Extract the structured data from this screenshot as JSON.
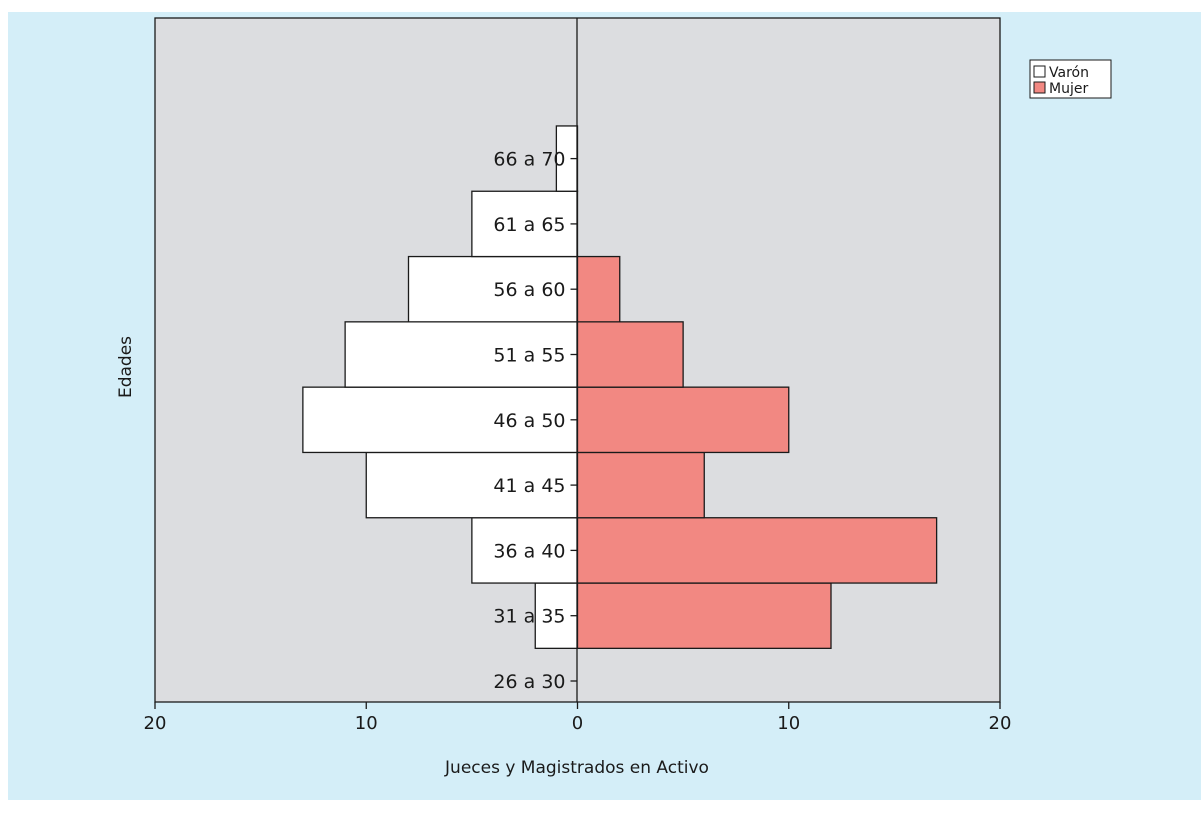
{
  "chart_data": {
    "type": "bar",
    "orientation": "horizontal",
    "layout": "population-pyramid",
    "xlabel": "Jueces y Magistrados en Activo",
    "ylabel": "Edades",
    "xlim": [
      -20,
      20
    ],
    "xticks": [
      -20,
      -10,
      0,
      10,
      20
    ],
    "xtick_labels": [
      "20",
      "10",
      "0",
      "10",
      "20"
    ],
    "categories": [
      "26 a 30",
      "31 a 35",
      "36 a 40",
      "41 a 45",
      "46 a 50",
      "51 a 55",
      "56 a 60",
      "61 a 65",
      "66 a 70"
    ],
    "series": [
      {
        "name": "Varón",
        "side": "left",
        "color": "#ffffff",
        "values": [
          0,
          2,
          5,
          10,
          13,
          11,
          8,
          5,
          1
        ]
      },
      {
        "name": "Mujer",
        "side": "right",
        "color": "#f28882",
        "values": [
          0,
          12,
          17,
          6,
          10,
          5,
          2,
          0,
          0
        ]
      }
    ],
    "legend": "top-right",
    "grid": false,
    "colors": {
      "background": "#d4eef8",
      "plot_area": "#dcdde0",
      "edge": "#1a1a1a"
    }
  }
}
